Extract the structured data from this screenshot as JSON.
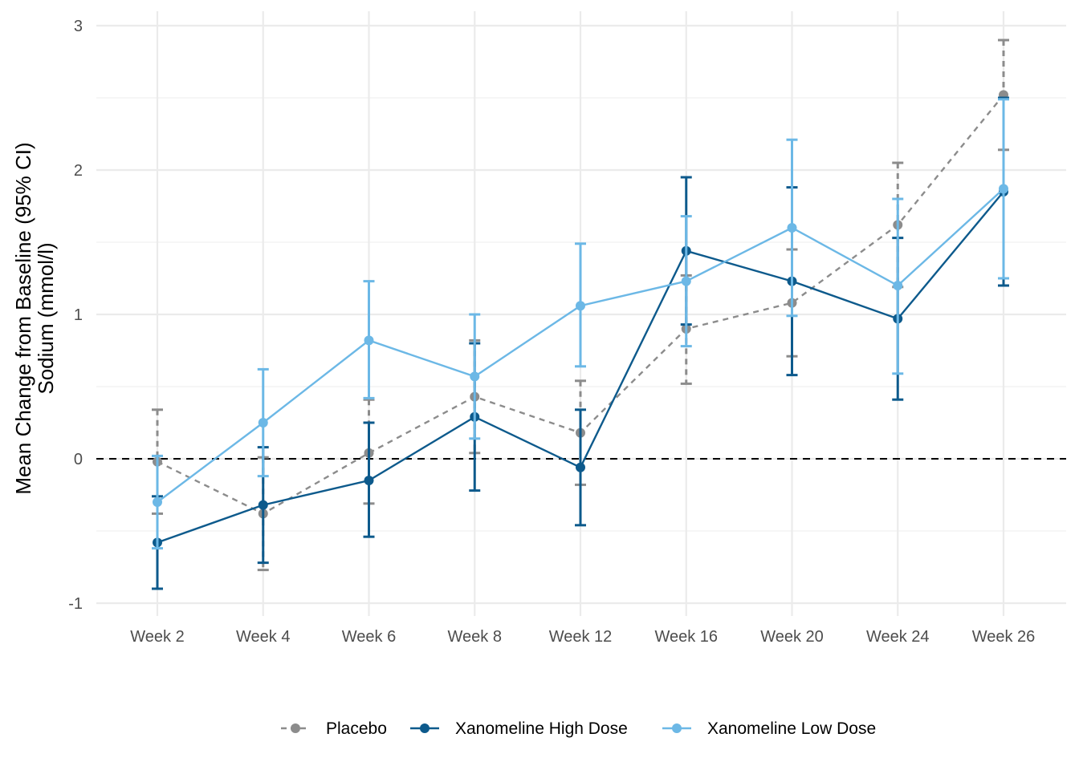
{
  "chart_data": {
    "type": "line",
    "title": "",
    "xlabel": "",
    "ylabel_lines": [
      "Mean Change from Baseline (95% CI)",
      "Sodium (mmol/l)"
    ],
    "categories": [
      "Week 2",
      "Week 4",
      "Week 6",
      "Week 8",
      "Week 12",
      "Week 16",
      "Week 20",
      "Week 24",
      "Week 26"
    ],
    "ylim": [
      -1.1,
      3.1
    ],
    "yticks": [
      -1,
      0,
      1,
      2,
      3
    ],
    "grid": true,
    "reference_line": 0,
    "legend_position": "bottom",
    "series": [
      {
        "name": "Placebo",
        "color": "#8c8c8c",
        "dashed": true,
        "values": [
          -0.02,
          -0.38,
          0.04,
          0.43,
          0.18,
          0.9,
          1.08,
          1.62,
          2.52
        ],
        "lower": [
          -0.38,
          -0.77,
          -0.31,
          0.04,
          -0.18,
          0.52,
          0.71,
          1.19,
          2.14
        ],
        "upper": [
          0.34,
          0.01,
          0.41,
          0.82,
          0.54,
          1.27,
          1.45,
          2.05,
          2.9
        ]
      },
      {
        "name": "Xanomeline High Dose",
        "color": "#0d5a8c",
        "dashed": false,
        "values": [
          -0.58,
          -0.32,
          -0.15,
          0.29,
          -0.06,
          1.44,
          1.23,
          0.97,
          1.85
        ],
        "lower": [
          -0.9,
          -0.72,
          -0.54,
          -0.22,
          -0.46,
          0.93,
          0.58,
          0.41,
          1.2
        ],
        "upper": [
          -0.26,
          0.08,
          0.25,
          0.8,
          0.34,
          1.95,
          1.88,
          1.53,
          2.5
        ]
      },
      {
        "name": "Xanomeline Low Dose",
        "color": "#6cb8e6",
        "dashed": false,
        "values": [
          -0.3,
          0.25,
          0.82,
          0.57,
          1.06,
          1.23,
          1.6,
          1.2,
          1.87
        ],
        "lower": [
          -0.62,
          -0.12,
          0.42,
          0.14,
          0.64,
          0.78,
          0.99,
          0.59,
          1.25
        ],
        "upper": [
          0.02,
          0.62,
          1.23,
          1.0,
          1.49,
          1.68,
          2.21,
          1.8,
          2.49
        ]
      }
    ]
  }
}
